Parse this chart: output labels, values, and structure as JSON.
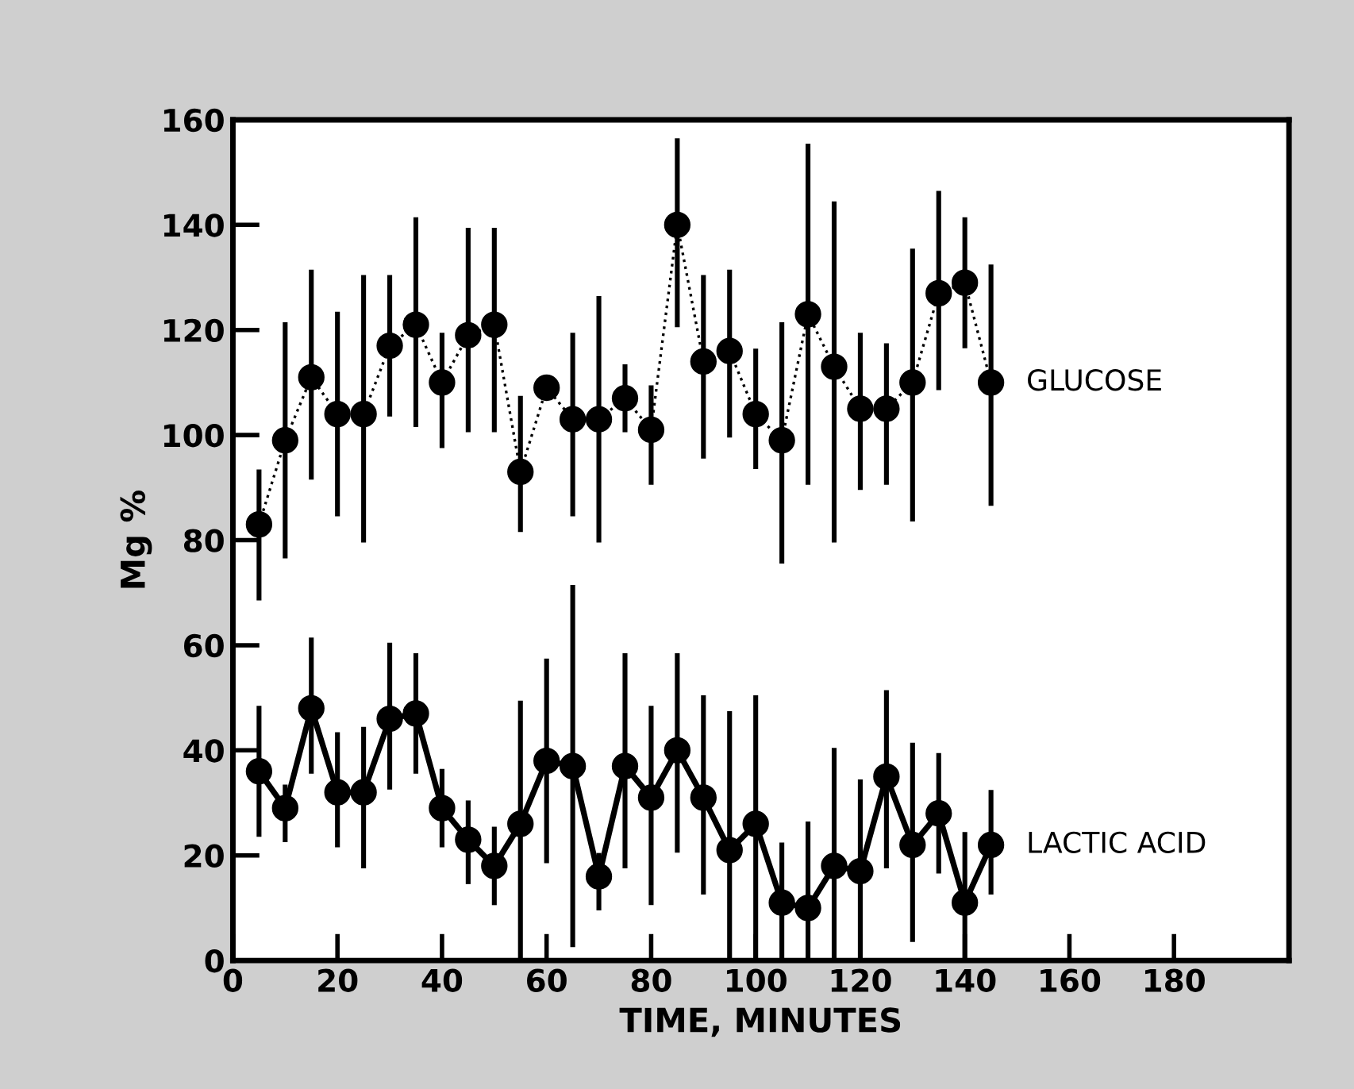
{
  "chart_data": {
    "type": "line",
    "xlabel": "TIME, MINUTES",
    "ylabel": "Mg %",
    "x": [
      5,
      10,
      15,
      20,
      25,
      30,
      35,
      40,
      45,
      50,
      55,
      60,
      65,
      70,
      75,
      80,
      85,
      90,
      95,
      100,
      105,
      110,
      115,
      120,
      125,
      130,
      135,
      140,
      145
    ],
    "series": [
      {
        "name": "GLUCOSE",
        "color": "#000000",
        "line_style": "dotted",
        "values": [
          83,
          99,
          111,
          104,
          104,
          117,
          121,
          110,
          119,
          121,
          93,
          109,
          103,
          103,
          107,
          101,
          140,
          114,
          116,
          104,
          99,
          123,
          113,
          105,
          105,
          110,
          127,
          129,
          110
        ],
        "errors": [
          [
            69,
            93
          ],
          [
            77,
            121
          ],
          [
            92,
            131
          ],
          [
            85,
            123
          ],
          [
            80,
            130
          ],
          [
            104,
            130
          ],
          [
            102,
            141
          ],
          [
            98,
            119
          ],
          [
            101,
            139
          ],
          [
            101,
            139
          ],
          [
            82,
            107
          ],
          null,
          [
            85,
            119
          ],
          [
            80,
            126
          ],
          [
            101,
            113
          ],
          [
            91,
            109
          ],
          [
            121,
            156
          ],
          [
            96,
            130
          ],
          [
            100,
            131
          ],
          [
            94,
            116
          ],
          [
            76,
            121
          ],
          [
            91,
            155
          ],
          [
            80,
            144
          ],
          [
            90,
            119
          ],
          [
            91,
            117
          ],
          [
            84,
            135
          ],
          [
            109,
            146
          ],
          [
            117,
            141
          ],
          [
            87,
            132
          ]
        ]
      },
      {
        "name": "LACTIC ACID",
        "color": "#000000",
        "line_style": "solid",
        "values": [
          36,
          29,
          48,
          32,
          32,
          46,
          47,
          29,
          23,
          18,
          26,
          38,
          37,
          16,
          37,
          31,
          40,
          31,
          21,
          26,
          11,
          10,
          18,
          17,
          35,
          22,
          28,
          11,
          22
        ],
        "errors": [
          [
            24,
            48
          ],
          [
            23,
            33
          ],
          [
            36,
            61
          ],
          [
            22,
            43
          ],
          [
            18,
            44
          ],
          [
            33,
            60
          ],
          [
            36,
            58
          ],
          [
            22,
            36
          ],
          [
            15,
            30
          ],
          [
            11,
            25
          ],
          [
            0,
            49
          ],
          [
            19,
            57
          ],
          [
            3,
            71
          ],
          [
            10,
            20
          ],
          [
            18,
            58
          ],
          [
            11,
            48
          ],
          [
            21,
            58
          ],
          [
            13,
            50
          ],
          [
            0,
            47
          ],
          [
            0,
            50
          ],
          [
            0,
            22
          ],
          [
            0,
            26
          ],
          [
            0,
            40
          ],
          [
            0,
            34
          ],
          [
            18,
            51
          ],
          [
            4,
            41
          ],
          [
            17,
            39
          ],
          [
            0,
            24
          ],
          [
            13,
            32
          ]
        ]
      }
    ],
    "marker": "circle",
    "xlim": [
      0,
      202
    ],
    "ylim": [
      0,
      160
    ],
    "xticks": [
      0,
      20,
      40,
      60,
      80,
      100,
      120,
      140,
      160,
      180
    ],
    "yticks": [
      0,
      20,
      40,
      60,
      80,
      100,
      120,
      140,
      160
    ],
    "grid": false,
    "legend": false
  }
}
